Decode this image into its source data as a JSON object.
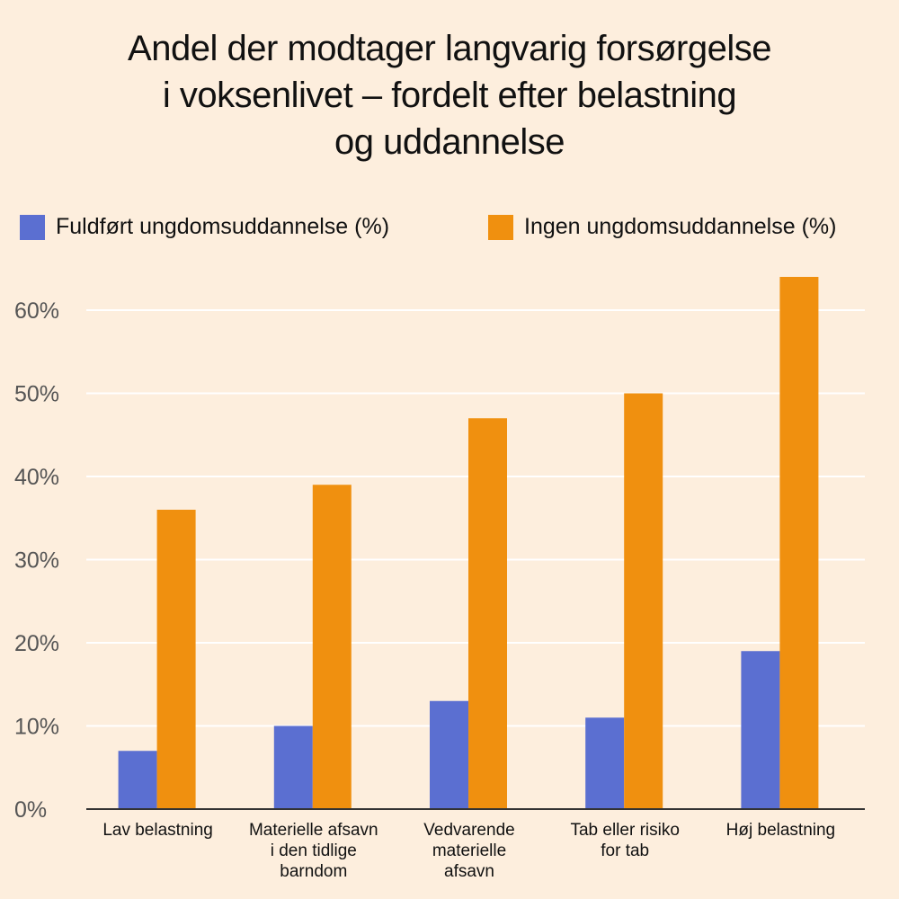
{
  "chart_data": {
    "type": "bar",
    "title_lines": [
      "Andel der modtager langvarig forsørgelse",
      "i voksenlivet – fordelt efter belastning",
      "og uddannelse"
    ],
    "categories": [
      [
        "Lav belastning"
      ],
      [
        "Materielle afsavn",
        "i den tidlige",
        "barndom"
      ],
      [
        "Vedvarende",
        "materielle",
        "afsavn"
      ],
      [
        "Tab eller risiko",
        "for tab"
      ],
      [
        "Høj belastning"
      ]
    ],
    "series": [
      {
        "name": "Fuldført ungdomsuddannelse (%)",
        "color": "#5b6fd1",
        "values": [
          7,
          10,
          13,
          11,
          19
        ]
      },
      {
        "name": "Ingen ungdomsuddannelse (%)",
        "color": "#f0900f",
        "values": [
          36,
          39,
          47,
          50,
          64
        ]
      }
    ],
    "yticks": [
      "0%",
      "10%",
      "20%",
      "30%",
      "40%",
      "50%",
      "60%"
    ],
    "ylim": [
      0,
      60
    ],
    "grid": true,
    "legend_position": "top"
  }
}
